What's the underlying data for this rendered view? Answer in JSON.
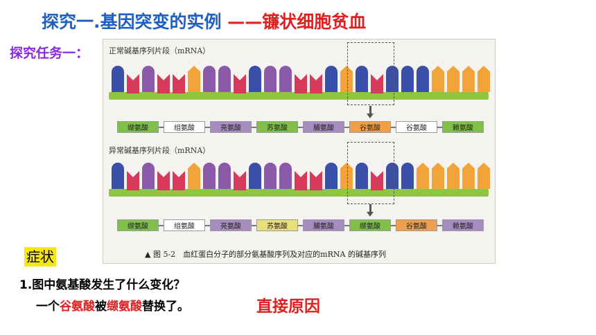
{
  "title": {
    "prefix": "探究一.基因突变的实例 ",
    "suffix": "——镰状细胞贫血"
  },
  "task_label": "探究任务一：",
  "figure": {
    "normal_label": "正常碱基序列片段（mRNA）",
    "abnormal_label": "异常碱基序列片段（mRNA）",
    "normal_amino_acids": [
      "缬氨酸",
      "组氨酸",
      "亮氨酸",
      "苏氨酸",
      "脯氨酸",
      "谷氨酸",
      "谷氨酸",
      "赖氨酸"
    ],
    "abnormal_amino_acids": [
      "缬氨酸",
      "组氨酸",
      "亮氨酸",
      "苏氨酸",
      "脯氨酸",
      "缬氨酸",
      "谷氨酸",
      "赖氨酸"
    ],
    "caption": "▲ 图 5-2　血红蛋白分子的部分氨基酸序列及对应的mRNA 的碱基序列",
    "colors": {
      "blue": "#3a4fa8",
      "red": "#d63a5a",
      "orange": "#f2a33a",
      "purple": "#8a5aa8",
      "aa_green": "#7fbf4a",
      "aa_purple": "#a78cc0",
      "aa_yellow": "#e9e07a",
      "aa_orange": "#f0a04a",
      "aa_white": "#ffffff"
    }
  },
  "symptom_label": "症状",
  "question": "1.图中氨基酸发生了什么变化？",
  "answer": {
    "part1": "一个",
    "part2": "谷氨酸",
    "part3": "被",
    "part4": "缬氨酸",
    "part5": "替换了。"
  },
  "direct_cause": "直接原因"
}
